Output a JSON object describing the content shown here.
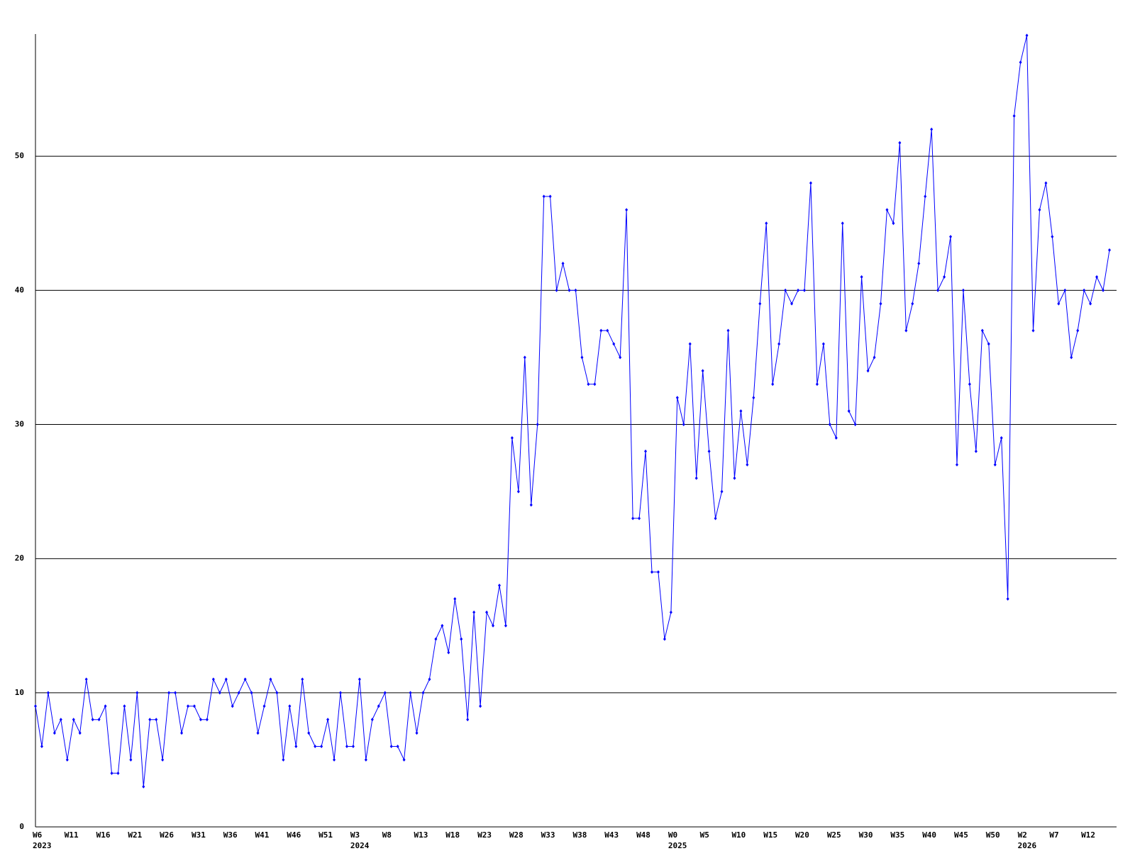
{
  "chart_data": {
    "type": "line",
    "color": "#0000ff",
    "grid": true,
    "ylim": [
      0,
      59
    ],
    "yticks": [
      0,
      10,
      20,
      30,
      40,
      50
    ],
    "categories": [
      "W6",
      null,
      null,
      null,
      null,
      "W11",
      null,
      null,
      null,
      null,
      "W16",
      null,
      null,
      null,
      null,
      "W21",
      null,
      null,
      null,
      null,
      "W26",
      null,
      null,
      null,
      null,
      "W31",
      null,
      null,
      null,
      null,
      "W36",
      null,
      null,
      null,
      null,
      "W41",
      null,
      null,
      null,
      null,
      "W46",
      null,
      null,
      null,
      null,
      "W51",
      null,
      null,
      null,
      null,
      "W3",
      null,
      null,
      null,
      null,
      "W8",
      null,
      null,
      null,
      null,
      "W13",
      null,
      null,
      null,
      null,
      "W18",
      null,
      null,
      null,
      null,
      "W23",
      null,
      null,
      null,
      null,
      "W28",
      null,
      null,
      null,
      null,
      "W33",
      null,
      null,
      null,
      null,
      "W38",
      null,
      null,
      null,
      null,
      "W43",
      null,
      null,
      null,
      null,
      "W48",
      null,
      null,
      null,
      null,
      "W0",
      null,
      null,
      null,
      null,
      "W5",
      null,
      null,
      null,
      null,
      "W10",
      null,
      null,
      null,
      null,
      "W15",
      null,
      null,
      null,
      null,
      "W20",
      null,
      null,
      null,
      null,
      "W25",
      null,
      null,
      null,
      null,
      "W30",
      null,
      null,
      null,
      null,
      "W35",
      null,
      null,
      null,
      null,
      "W40",
      null,
      null,
      null,
      null,
      "W45",
      null,
      null,
      null,
      null,
      "W50",
      null,
      null,
      null,
      null,
      "W2",
      null,
      null,
      null,
      null,
      "W7",
      null,
      null,
      null,
      null,
      "W12",
      null,
      null,
      null,
      null
    ],
    "category_years": [
      "2023",
      null,
      null,
      null,
      null,
      null,
      null,
      null,
      null,
      null,
      null,
      null,
      null,
      null,
      null,
      null,
      null,
      null,
      null,
      null,
      null,
      null,
      null,
      null,
      null,
      null,
      null,
      null,
      null,
      null,
      null,
      null,
      null,
      null,
      null,
      null,
      null,
      null,
      null,
      null,
      null,
      null,
      null,
      null,
      null,
      null,
      null,
      null,
      null,
      null,
      "2024",
      null,
      null,
      null,
      null,
      null,
      null,
      null,
      null,
      null,
      null,
      null,
      null,
      null,
      null,
      null,
      null,
      null,
      null,
      null,
      null,
      null,
      null,
      null,
      null,
      null,
      null,
      null,
      null,
      null,
      null,
      null,
      null,
      null,
      null,
      null,
      null,
      null,
      null,
      null,
      null,
      null,
      null,
      null,
      null,
      null,
      null,
      null,
      null,
      null,
      "2025",
      null,
      null,
      null,
      null,
      null,
      null,
      null,
      null,
      null,
      null,
      null,
      null,
      null,
      null,
      null,
      null,
      null,
      null,
      null,
      null,
      null,
      null,
      null,
      null,
      null,
      null,
      null,
      null,
      null,
      null,
      null,
      null,
      null,
      null,
      null,
      null,
      null,
      null,
      null,
      null,
      null,
      null,
      null,
      null,
      null,
      null,
      null,
      null,
      null,
      null,
      null,
      null,
      null,
      null,
      "2026",
      null,
      null,
      null,
      null,
      null,
      null,
      null,
      null,
      null,
      null,
      null,
      null,
      null,
      null
    ],
    "values": [
      9,
      6,
      10,
      7,
      8,
      5,
      8,
      7,
      11,
      8,
      8,
      9,
      4,
      4,
      9,
      5,
      10,
      3,
      8,
      8,
      5,
      10,
      10,
      7,
      9,
      9,
      8,
      8,
      11,
      10,
      11,
      9,
      10,
      11,
      10,
      7,
      9,
      11,
      10,
      5,
      9,
      6,
      11,
      7,
      6,
      6,
      8,
      5,
      10,
      6,
      6,
      11,
      5,
      8,
      9,
      10,
      6,
      6,
      5,
      10,
      7,
      10,
      11,
      14,
      15,
      13,
      17,
      14,
      8,
      16,
      9,
      16,
      15,
      18,
      15,
      29,
      25,
      35,
      24,
      30,
      47,
      47,
      40,
      42,
      40,
      40,
      35,
      33,
      33,
      37,
      37,
      36,
      35,
      46,
      23,
      23,
      28,
      19,
      19,
      14,
      16,
      32,
      30,
      36,
      26,
      34,
      28,
      23,
      25,
      37,
      26,
      31,
      27,
      32,
      39,
      45,
      33,
      36,
      40,
      39,
      40,
      40,
      48,
      33,
      36,
      30,
      29,
      45,
      31,
      30,
      41,
      34,
      35,
      39,
      46,
      45,
      51,
      37,
      39,
      42,
      47,
      52,
      40,
      41,
      44,
      27,
      40,
      33,
      28,
      37,
      36,
      27,
      29,
      17,
      53,
      57,
      59,
      37,
      46,
      48,
      44,
      39,
      40,
      35,
      37,
      40,
      39,
      41,
      40,
      43
    ]
  }
}
